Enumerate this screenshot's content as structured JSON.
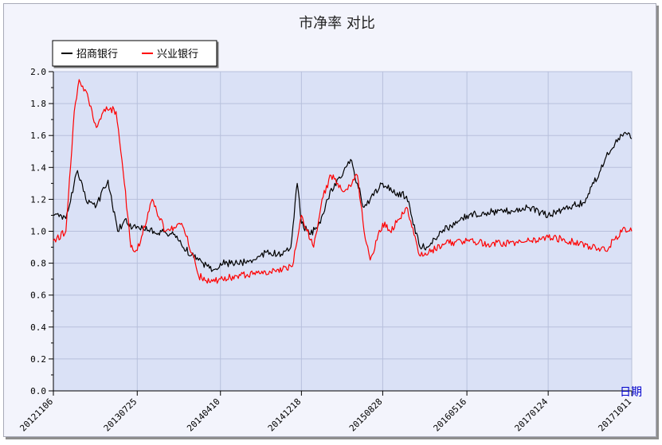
{
  "chart_data": {
    "type": "line",
    "title": "市净率 对比",
    "xlabel": "日期",
    "ylabel": "",
    "ylim": [
      0.0,
      2.0
    ],
    "yticks": [
      "0.0",
      "0.2",
      "0.4",
      "0.6",
      "0.8",
      "1.0",
      "1.2",
      "1.4",
      "1.6",
      "1.8",
      "2.0"
    ],
    "xticks": [
      "20121106",
      "20130725",
      "20140410",
      "20141218",
      "20150828",
      "20160516",
      "20170124",
      "20171011"
    ],
    "grid": true,
    "legend_position": "top-left",
    "series": [
      {
        "name": "招商银行",
        "color": "#000000",
        "x": [
          "2012-11-06",
          "2012-12-15",
          "2013-01-20",
          "2013-02-15",
          "2013-03-20",
          "2013-04-25",
          "2013-05-25",
          "2013-06-20",
          "2013-07-10",
          "2013-07-25",
          "2013-09-15",
          "2013-11-15",
          "2014-01-10",
          "2014-02-15",
          "2014-03-20",
          "2014-04-10",
          "2014-06-01",
          "2014-07-20",
          "2014-09-01",
          "2014-10-20",
          "2014-11-15",
          "2014-12-05",
          "2014-12-18",
          "2015-01-15",
          "2015-02-15",
          "2015-03-10",
          "2015-04-01",
          "2015-04-25",
          "2015-05-20",
          "2015-06-10",
          "2015-07-01",
          "2015-07-20",
          "2015-08-28",
          "2015-09-25",
          "2015-11-10",
          "2015-12-22",
          "2016-01-15",
          "2016-02-25",
          "2016-04-15",
          "2016-05-16",
          "2016-07-20",
          "2016-10-01",
          "2016-11-20",
          "2017-01-24",
          "2017-03-20",
          "2017-05-15",
          "2017-06-15",
          "2017-07-20",
          "2017-08-20",
          "2017-09-20",
          "2017-10-11"
        ],
        "values": [
          1.1,
          1.08,
          1.38,
          1.2,
          1.16,
          1.32,
          1.0,
          1.08,
          1.02,
          1.03,
          1.0,
          0.98,
          0.85,
          0.8,
          0.76,
          0.8,
          0.8,
          0.82,
          0.87,
          0.85,
          0.9,
          1.3,
          1.05,
          0.98,
          1.05,
          1.2,
          1.3,
          1.35,
          1.45,
          1.3,
          1.15,
          1.2,
          1.3,
          1.25,
          1.22,
          0.9,
          0.9,
          1.0,
          1.05,
          1.1,
          1.12,
          1.13,
          1.15,
          1.1,
          1.15,
          1.18,
          1.3,
          1.45,
          1.55,
          1.62,
          1.58
        ]
      },
      {
        "name": "兴业银行",
        "color": "#ff0000",
        "x": [
          "2012-11-06",
          "2012-12-15",
          "2013-01-10",
          "2013-01-25",
          "2013-02-20",
          "2013-03-20",
          "2013-04-20",
          "2013-05-20",
          "2013-06-15",
          "2013-07-05",
          "2013-07-25",
          "2013-09-10",
          "2013-10-20",
          "2013-12-10",
          "2014-01-15",
          "2014-02-01",
          "2014-03-10",
          "2014-04-10",
          "2014-06-01",
          "2014-07-20",
          "2014-09-10",
          "2014-10-20",
          "2014-11-20",
          "2014-12-18",
          "2015-01-25",
          "2015-02-20",
          "2015-03-20",
          "2015-04-10",
          "2015-05-01",
          "2015-06-10",
          "2015-07-01",
          "2015-07-20",
          "2015-08-28",
          "2015-09-20",
          "2015-11-10",
          "2015-12-20",
          "2016-01-25",
          "2016-03-01",
          "2016-05-16",
          "2016-08-01",
          "2016-10-15",
          "2017-01-24",
          "2017-03-15",
          "2017-05-01",
          "2017-06-20",
          "2017-07-20",
          "2017-08-20",
          "2017-09-20",
          "2017-10-11"
        ],
        "values": [
          0.94,
          1.0,
          1.75,
          1.95,
          1.86,
          1.65,
          1.78,
          1.75,
          1.3,
          0.9,
          0.88,
          1.2,
          1.0,
          1.05,
          0.85,
          0.72,
          0.68,
          0.7,
          0.72,
          0.73,
          0.75,
          0.76,
          0.78,
          1.1,
          0.9,
          1.2,
          1.35,
          1.3,
          1.25,
          1.35,
          1.0,
          0.82,
          1.05,
          1.0,
          1.15,
          0.85,
          0.87,
          0.92,
          0.94,
          0.92,
          0.93,
          0.96,
          0.95,
          0.92,
          0.9,
          0.88,
          0.95,
          1.02,
          1.0
        ]
      }
    ]
  }
}
